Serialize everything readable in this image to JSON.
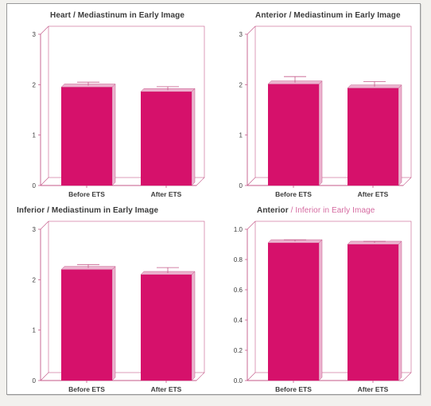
{
  "colors": {
    "bar": "#d6116b",
    "bar_side": "#ecb3cf",
    "axis": "#c55a8a",
    "text": "#3a3a3a"
  },
  "chart_data": [
    {
      "type": "bar",
      "title": "Heart / Mediastinum in Early Image",
      "categories": [
        "Before ETS",
        "After ETS"
      ],
      "values": [
        1.95,
        1.86
      ],
      "errors": [
        0.1,
        0.1
      ],
      "ylim": [
        0,
        3
      ],
      "yticks": [
        "0",
        "1",
        "2",
        "3"
      ]
    },
    {
      "type": "bar",
      "title": "Anterior / Mediastinum in Early Image",
      "categories": [
        "Before ETS",
        "After ETS"
      ],
      "values": [
        2.01,
        1.93
      ],
      "errors": [
        0.15,
        0.13
      ],
      "ylim": [
        0,
        3
      ],
      "yticks": [
        "0",
        "1",
        "2",
        "3"
      ]
    },
    {
      "type": "bar",
      "title": "Inferior / Mediastinum in Early Image",
      "categories": [
        "Before ETS",
        "After ETS"
      ],
      "values": [
        2.2,
        2.1
      ],
      "errors": [
        0.1,
        0.14
      ],
      "ylim": [
        0,
        3
      ],
      "yticks": [
        "0",
        "1",
        "2",
        "3"
      ]
    },
    {
      "type": "bar",
      "title": "Anterior / Inferior in Early Image",
      "title_main": "Anterior",
      "title_accent": " / Inferior in Early Image",
      "categories": [
        "Before ETS",
        "After ETS"
      ],
      "values": [
        0.91,
        0.9
      ],
      "errors": [
        0.02,
        0.02
      ],
      "ylim": [
        0,
        1
      ],
      "yticks": [
        "0.0",
        "0.2",
        "0.4",
        "0.6",
        "0.8",
        "1.0"
      ]
    }
  ]
}
